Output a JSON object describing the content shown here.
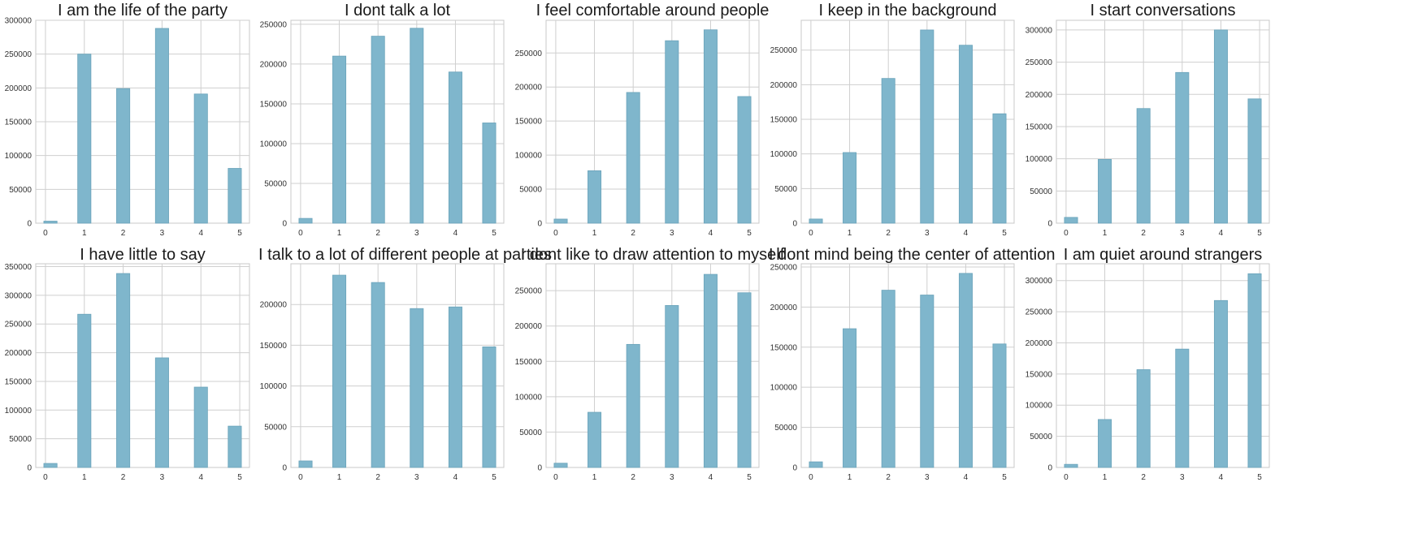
{
  "style": {
    "bar_color": "#7fb6cc",
    "bar_edge": "#6aa3ba",
    "grid_color": "#cfcfcf",
    "axes_edge": "#c8c8c8"
  },
  "chart_data": [
    {
      "type": "bar",
      "title": "I am the life of the party",
      "categories": [
        "0",
        "1",
        "2",
        "3",
        "4",
        "5"
      ],
      "values": [
        3000,
        250000,
        199000,
        288000,
        191000,
        81000
      ],
      "ylim": [
        0,
        300000
      ],
      "yticks": [
        "0",
        "50000",
        "100000",
        "150000",
        "200000",
        "250000",
        "300000"
      ],
      "grid": true
    },
    {
      "type": "bar",
      "title": "I dont talk a lot",
      "categories": [
        "0",
        "1",
        "2",
        "3",
        "4",
        "5"
      ],
      "values": [
        6000,
        210000,
        235000,
        245000,
        190000,
        126000
      ],
      "ylim": [
        0,
        255000
      ],
      "yticks": [
        "0",
        "50000",
        "100000",
        "150000",
        "200000",
        "250000"
      ],
      "grid": true
    },
    {
      "type": "bar",
      "title": "I feel comfortable around people",
      "categories": [
        "0",
        "1",
        "2",
        "3",
        "4",
        "5"
      ],
      "values": [
        6000,
        77000,
        192000,
        268000,
        284000,
        186000
      ],
      "ylim": [
        0,
        298000
      ],
      "yticks": [
        "0",
        "50000",
        "100000",
        "150000",
        "200000",
        "250000"
      ],
      "grid": true
    },
    {
      "type": "bar",
      "title": "I keep in the background",
      "categories": [
        "0",
        "1",
        "2",
        "3",
        "4",
        "5"
      ],
      "values": [
        6000,
        102000,
        209000,
        279000,
        257000,
        158000
      ],
      "ylim": [
        0,
        293000
      ],
      "yticks": [
        "0",
        "50000",
        "100000",
        "150000",
        "200000",
        "250000"
      ],
      "grid": true
    },
    {
      "type": "bar",
      "title": "I start conversations",
      "categories": [
        "0",
        "1",
        "2",
        "3",
        "4",
        "5"
      ],
      "values": [
        9000,
        99000,
        178000,
        234000,
        300000,
        193000
      ],
      "ylim": [
        0,
        315000
      ],
      "yticks": [
        "0",
        "50000",
        "100000",
        "150000",
        "200000",
        "250000",
        "300000"
      ],
      "grid": true
    },
    {
      "type": "bar",
      "title": "I have little to say",
      "categories": [
        "0",
        "1",
        "2",
        "3",
        "4",
        "5"
      ],
      "values": [
        7000,
        267000,
        338000,
        191000,
        140000,
        72000
      ],
      "ylim": [
        0,
        355000
      ],
      "yticks": [
        "0",
        "50000",
        "100000",
        "150000",
        "200000",
        "250000",
        "300000",
        "350000"
      ],
      "grid": true
    },
    {
      "type": "bar",
      "title": "I talk to a lot of different people at parties",
      "categories": [
        "0",
        "1",
        "2",
        "3",
        "4",
        "5"
      ],
      "values": [
        8000,
        236000,
        227000,
        195000,
        197000,
        148000
      ],
      "ylim": [
        0,
        250000
      ],
      "yticks": [
        "0",
        "50000",
        "100000",
        "150000",
        "200000"
      ],
      "grid": true
    },
    {
      "type": "bar",
      "title": "I dont like to draw attention to myself",
      "categories": [
        "0",
        "1",
        "2",
        "3",
        "4",
        "5"
      ],
      "values": [
        6000,
        78000,
        174000,
        229000,
        273000,
        247000
      ],
      "ylim": [
        0,
        288000
      ],
      "yticks": [
        "0",
        "50000",
        "100000",
        "150000",
        "200000",
        "250000"
      ],
      "grid": true
    },
    {
      "type": "bar",
      "title": "I dont mind being the center of attention",
      "categories": [
        "0",
        "1",
        "2",
        "3",
        "4",
        "5"
      ],
      "values": [
        7000,
        173000,
        221000,
        215000,
        242000,
        154000
      ],
      "ylim": [
        0,
        254000
      ],
      "yticks": [
        "0",
        "50000",
        "100000",
        "150000",
        "200000",
        "250000"
      ],
      "grid": true
    },
    {
      "type": "bar",
      "title": "I am quiet around strangers",
      "categories": [
        "0",
        "1",
        "2",
        "3",
        "4",
        "5"
      ],
      "values": [
        5000,
        77000,
        157000,
        190000,
        268000,
        311000
      ],
      "ylim": [
        0,
        327000
      ],
      "yticks": [
        "0",
        "50000",
        "100000",
        "150000",
        "200000",
        "250000",
        "300000"
      ],
      "grid": true
    }
  ]
}
